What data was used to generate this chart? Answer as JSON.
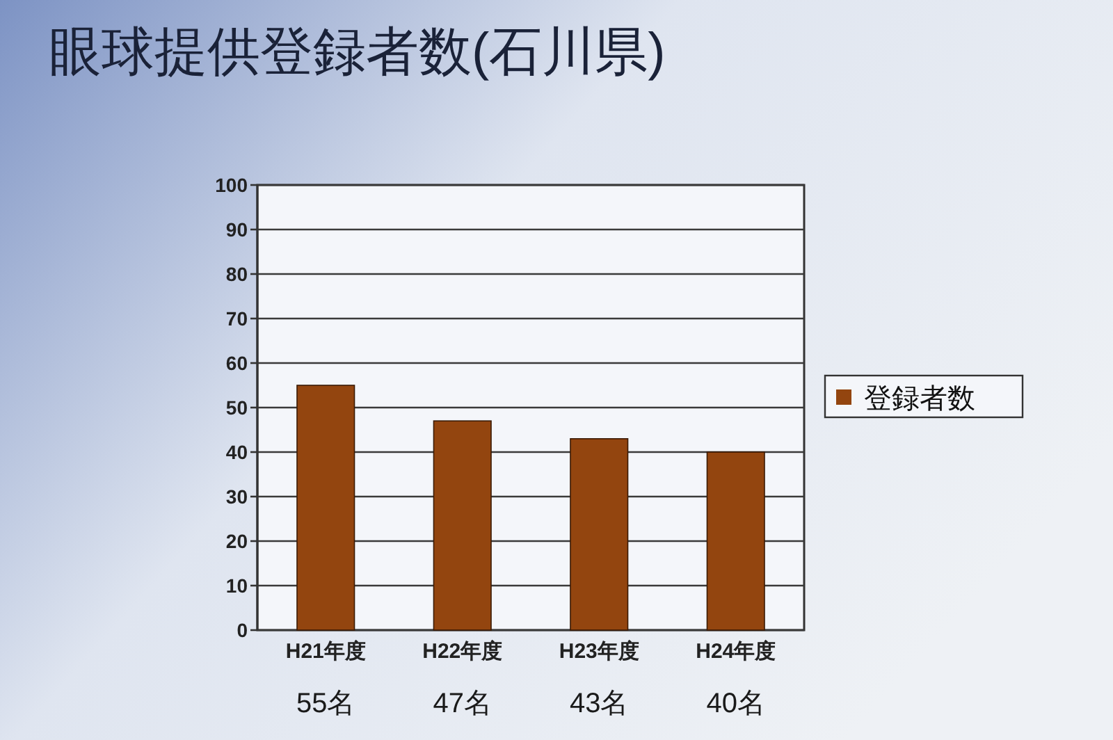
{
  "chart_data": {
    "type": "bar",
    "title": "眼球提供登録者数(石川県)",
    "categories": [
      "H21年度",
      "H22年度",
      "H23年度",
      "H24年度"
    ],
    "series": [
      {
        "name": "登録者数",
        "color": "#93450f",
        "values": [
          55,
          47,
          43,
          40
        ],
        "value_labels": [
          "55名",
          "47名",
          "43名",
          "40名"
        ]
      }
    ],
    "ylim": [
      0,
      100
    ],
    "yticks": [
      0,
      10,
      20,
      30,
      40,
      50,
      60,
      70,
      80,
      90,
      100
    ],
    "grid": "y",
    "legend": "right"
  }
}
